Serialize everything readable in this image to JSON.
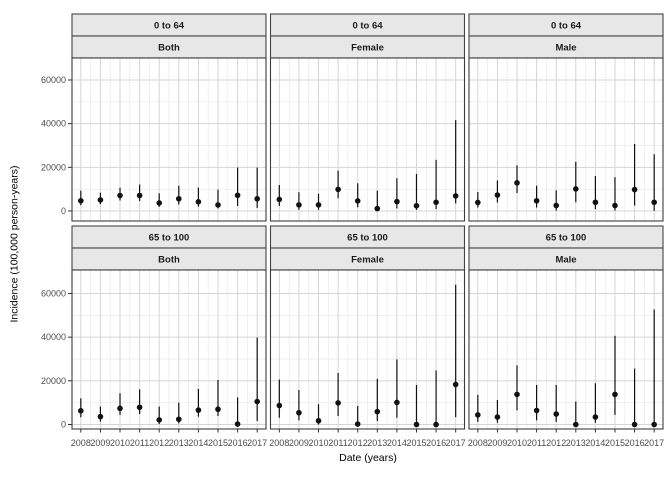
{
  "chart_data": {
    "type": "scatter",
    "subtype": "pointrange-errorbar",
    "title": "",
    "xlabel": "Date (years)",
    "ylabel": "Incidence (100,000 person-years)",
    "legend": "none",
    "grid": true,
    "x": [
      2008,
      2009,
      2010,
      2011,
      2012,
      2013,
      2014,
      2015,
      2016,
      2017
    ],
    "x_tick_labels": [
      "2008",
      "2009",
      "2010",
      "2011",
      "2012",
      "2013",
      "2014",
      "2015",
      "2016",
      "2017"
    ],
    "x_minor_gridlines": [
      2008.5,
      2009.5,
      2010.5,
      2011.5,
      2012.5,
      2013.5,
      2014.5,
      2015.5,
      2016.5
    ],
    "y_major_ticks": [
      0,
      20000,
      40000,
      60000
    ],
    "y_tick_labels": [
      "0",
      "20000",
      "40000",
      "60000"
    ],
    "y_minor_ticks": [
      10000,
      30000,
      50000
    ],
    "ylim": [
      -4600,
      70300
    ],
    "facet_rows": [
      "0 to 64",
      "65 to 100"
    ],
    "facet_cols": [
      "Both",
      "Female",
      "Male"
    ],
    "facets": [
      {
        "age": "0 to 64",
        "sex": "Both",
        "estimates": [
          4700,
          5100,
          7100,
          7100,
          3700,
          5600,
          4200,
          2800,
          7200,
          5600
        ],
        "lower": [
          2600,
          3100,
          4800,
          4600,
          1900,
          3000,
          2000,
          1200,
          2300,
          1400
        ],
        "upper": [
          9300,
          8400,
          10700,
          12100,
          8100,
          11600,
          10700,
          9800,
          19900,
          19900
        ]
      },
      {
        "age": "0 to 64",
        "sex": "Female",
        "estimates": [
          5300,
          2800,
          2800,
          9900,
          4600,
          1100,
          4300,
          2400,
          4000,
          6900
        ],
        "lower": [
          2300,
          500,
          500,
          5800,
          1700,
          100,
          1200,
          500,
          900,
          3500
        ],
        "upper": [
          11900,
          8600,
          7900,
          18500,
          12700,
          9300,
          15000,
          17000,
          23400,
          41600
        ]
      },
      {
        "age": "0 to 64",
        "sex": "Male",
        "estimates": [
          3900,
          7300,
          12900,
          4700,
          2500,
          10100,
          4000,
          2500,
          9800,
          4000
        ],
        "lower": [
          1600,
          3900,
          8200,
          1600,
          200,
          4000,
          900,
          200,
          2500,
          100
        ],
        "upper": [
          8700,
          14000,
          20900,
          11600,
          9500,
          22500,
          16000,
          15500,
          30700,
          26000
        ]
      },
      {
        "age": "65 to 100",
        "sex": "Both",
        "estimates": [
          6300,
          3600,
          7400,
          7900,
          2100,
          2400,
          6600,
          7000,
          200,
          10500
        ],
        "lower": [
          3300,
          1300,
          4400,
          4800,
          200,
          500,
          3600,
          3900,
          0,
          1600
        ],
        "upper": [
          12000,
          8200,
          14300,
          16100,
          8200,
          10000,
          16300,
          20400,
          12400,
          39800
        ]
      },
      {
        "age": "65 to 100",
        "sex": "Female",
        "estimates": [
          8700,
          5400,
          1700,
          9900,
          200,
          5900,
          10100,
          0,
          0,
          18300
        ],
        "lower": [
          3100,
          1900,
          0,
          3900,
          0,
          1600,
          3100,
          0,
          0,
          3400
        ],
        "upper": [
          20600,
          15800,
          9300,
          23600,
          8500,
          20900,
          29800,
          18100,
          24800,
          64000
        ]
      },
      {
        "age": "65 to 100",
        "sex": "Male",
        "estimates": [
          4400,
          3400,
          13800,
          6400,
          4800,
          0,
          3400,
          13800,
          0,
          0
        ],
        "lower": [
          1200,
          800,
          6500,
          1900,
          1200,
          0,
          800,
          4400,
          0,
          0
        ],
        "upper": [
          13600,
          11200,
          27100,
          18100,
          18100,
          10500,
          18900,
          40600,
          25600,
          52700
        ]
      }
    ],
    "colors": {
      "point": "#111111",
      "errorbar": "#111111",
      "strip_fill": "#e7e7e7",
      "panel_border": "#3c3c3c",
      "grid_major": "#d5d5d5",
      "grid_minor": "#e9e9e9",
      "tick_label": "#4d4d4d"
    }
  }
}
